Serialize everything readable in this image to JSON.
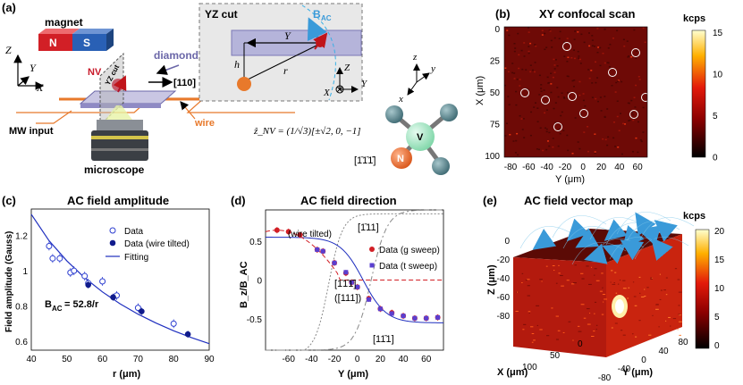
{
  "panels": {
    "a": {
      "label": "(a)",
      "magnet_label": "magnet",
      "magnet_n": "N",
      "magnet_s": "S",
      "nv": "NV",
      "yz_cut_small": "YZ cut",
      "diamond": "diamond",
      "dir_110": "[110]",
      "mw_input": "MW input",
      "wire": "wire",
      "microscope": "microscope",
      "yz_title": "YZ cut",
      "bac": "B",
      "bac_sub": "AC",
      "axis_Z": "Z",
      "axis_Y": "Y",
      "axis_X": "X",
      "axis_h": "h",
      "axis_r": "r",
      "axis_z": "z",
      "axis_y": "y",
      "axis_x": "x",
      "znv_eq": "ẑ_NV = (1/√3)[±√2, 0, −1]",
      "dir_111bar": "[1̄1̄1̄]",
      "atom_v": "V",
      "atom_n": "N"
    },
    "b": {
      "label": "(b)",
      "title": "XY confocal scan",
      "xlabel": "Y (μm)",
      "ylabel": "X (μm)",
      "cbar_label": "kcps",
      "xticks": [
        "-80",
        "-60",
        "-40",
        "-20",
        "0",
        "20",
        "40",
        "60"
      ],
      "yticks": [
        "0",
        "25",
        "50",
        "75",
        "100"
      ],
      "cbar_ticks": [
        "15",
        "10",
        "5",
        "0"
      ]
    },
    "c": {
      "label": "(c)",
      "title": "AC field amplitude",
      "xlabel": "r (μm)",
      "ylabel": "Field amplitude (Gauss)",
      "legend": [
        "Data",
        "Data (wire tilted)",
        "Fitting"
      ],
      "annotation": "B",
      "annotation_sub": "AC",
      "annotation_tail": "= 52.8/r",
      "xticks": [
        "40",
        "50",
        "60",
        "70",
        "80",
        "90"
      ],
      "yticks": [
        "0.6",
        "0.8",
        "1",
        "1.2"
      ]
    },
    "d": {
      "label": "(d)",
      "title": "AC field direction",
      "xlabel": "Y (μm)",
      "ylabel": "B_z/B_AC",
      "legend": [
        "Data (g sweep)",
        "Data (t sweep)"
      ],
      "note_tilted": "(wire tilted)",
      "dir_a": "[1̄11]",
      "dir_b": "[1̄1̄1̄]",
      "dir_c": "([111])",
      "dir_d": "[11̄1]",
      "xticks": [
        "-60",
        "-40",
        "-20",
        "0",
        "20",
        "40",
        "60"
      ],
      "yticks": [
        "-0.5",
        "0",
        "0.5"
      ]
    },
    "e": {
      "label": "(e)",
      "title": "AC field vector map",
      "cbar_label": "kcps",
      "zlabel": "Z (μm)",
      "xlabel": "X (μm)",
      "ylabel": "Y (μm)",
      "zticks": [
        "0",
        "-20",
        "-40",
        "-60",
        "-80"
      ],
      "xticks": [
        "0",
        "50",
        "100"
      ],
      "yticks": [
        "-80",
        "-40",
        "0",
        "40",
        "80"
      ],
      "cbar_ticks": [
        "20",
        "15",
        "10",
        "5",
        "0"
      ]
    }
  },
  "chart_data": [
    {
      "type": "scatter",
      "panel": "c",
      "title": "AC field amplitude",
      "xlabel": "r (μm)",
      "ylabel": "Field amplitude (Gauss)",
      "xlim": [
        40,
        90
      ],
      "ylim": [
        0.55,
        1.35
      ],
      "series": [
        {
          "name": "Data",
          "x": [
            45,
            46,
            48,
            51,
            52,
            55,
            56,
            60,
            64,
            70,
            80
          ],
          "y": [
            1.14,
            1.07,
            1.07,
            0.99,
            1.0,
            0.97,
            0.93,
            0.94,
            0.86,
            0.79,
            0.7
          ]
        },
        {
          "name": "Data (wire tilted)",
          "x": [
            56,
            63,
            71,
            84
          ],
          "y": [
            0.92,
            0.85,
            0.77,
            0.64
          ]
        },
        {
          "name": "Fitting",
          "x": [
            40,
            45,
            50,
            55,
            60,
            65,
            70,
            75,
            80,
            85,
            90
          ],
          "y": [
            1.32,
            1.17,
            1.056,
            0.96,
            0.88,
            0.812,
            0.754,
            0.704,
            0.66,
            0.621,
            0.587
          ]
        }
      ]
    },
    {
      "type": "scatter",
      "panel": "d",
      "title": "AC field direction",
      "xlabel": "Y (μm)",
      "ylabel": "B_z/B_AC",
      "xlim": [
        -80,
        75
      ],
      "ylim": [
        -0.9,
        0.9
      ],
      "series": [
        {
          "name": "Data (g sweep)",
          "x": [
            -70,
            -60,
            -50,
            -35,
            -30,
            -20,
            -10,
            -5,
            0,
            10,
            20,
            30,
            40,
            50,
            60,
            70
          ],
          "y": [
            0.64,
            0.62,
            0.58,
            0.39,
            0.37,
            0.22,
            0.09,
            -0.03,
            -0.09,
            -0.24,
            -0.37,
            -0.42,
            -0.46,
            -0.49,
            -0.49,
            -0.48
          ]
        },
        {
          "name": "Data (t sweep)",
          "x": [
            -35,
            -30,
            -20,
            -10,
            -5,
            0,
            10,
            20,
            30,
            40,
            50,
            60,
            70
          ],
          "y": [
            0.39,
            0.37,
            0.22,
            0.1,
            -0.03,
            -0.09,
            -0.25,
            -0.37,
            -0.43,
            -0.46,
            -0.49,
            -0.49,
            -0.48
          ]
        }
      ]
    }
  ]
}
